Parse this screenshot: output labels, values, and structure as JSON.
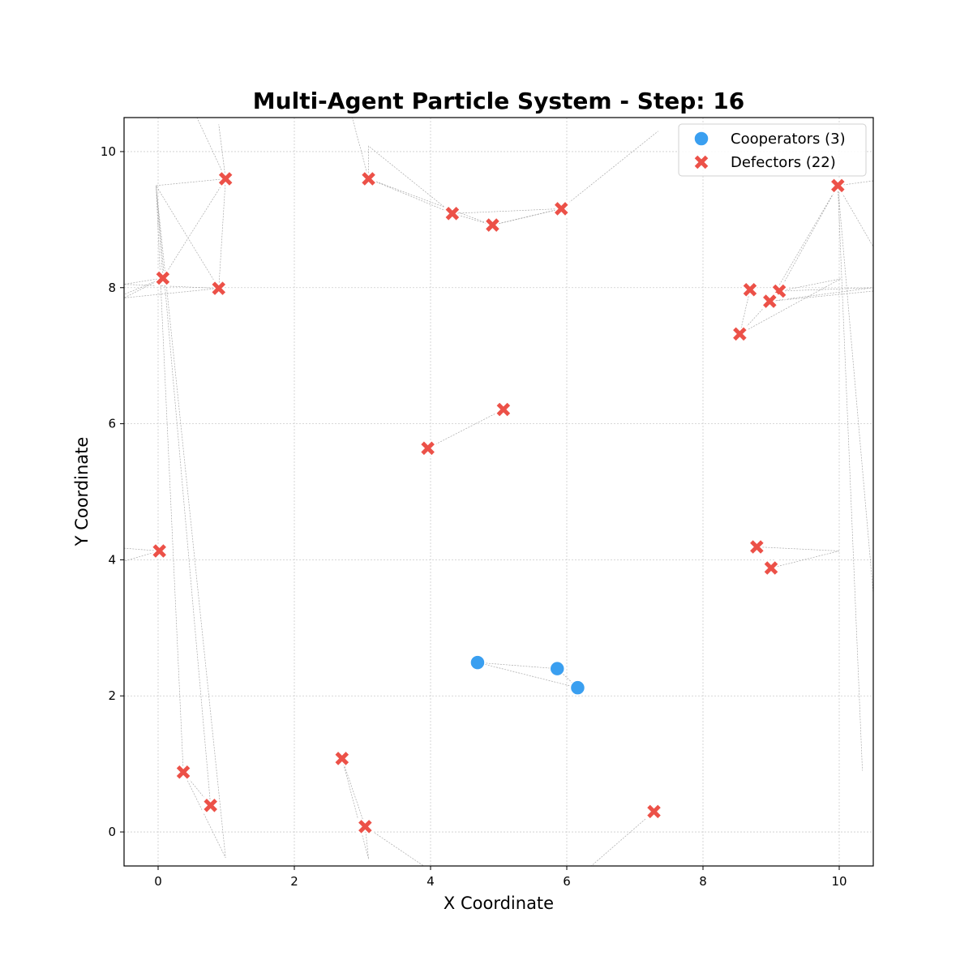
{
  "chart_data": {
    "type": "scatter",
    "title": "Multi-Agent Particle System - Step: 16",
    "xlabel": "X Coordinate",
    "ylabel": "Y Coordinate",
    "xlim": [
      -0.5,
      10.5
    ],
    "ylim": [
      -0.5,
      10.5
    ],
    "xticks": [
      0,
      2,
      4,
      6,
      8,
      10
    ],
    "yticks": [
      0,
      2,
      4,
      6,
      8,
      10
    ],
    "grid": true,
    "legend_position": "top-right",
    "series": [
      {
        "name": "Cooperators (3)",
        "marker": "circle",
        "color": "#3a9ff0",
        "points": [
          [
            4.69,
            2.49
          ],
          [
            5.86,
            2.4
          ],
          [
            6.16,
            2.12
          ]
        ]
      },
      {
        "name": "Defectors (22)",
        "marker": "x",
        "color": "#ec5148",
        "points": [
          [
            0.99,
            9.6
          ],
          [
            0.07,
            8.14
          ],
          [
            0.89,
            7.99
          ],
          [
            3.09,
            9.6
          ],
          [
            4.32,
            9.09
          ],
          [
            4.91,
            8.92
          ],
          [
            5.92,
            9.16
          ],
          [
            9.98,
            9.5
          ],
          [
            8.69,
            7.97
          ],
          [
            9.12,
            7.95
          ],
          [
            8.98,
            7.8
          ],
          [
            8.54,
            7.32
          ],
          [
            5.07,
            6.21
          ],
          [
            3.96,
            5.64
          ],
          [
            0.02,
            4.13
          ],
          [
            8.79,
            4.19
          ],
          [
            9.0,
            3.88
          ],
          [
            0.37,
            0.88
          ],
          [
            0.77,
            0.39
          ],
          [
            2.7,
            1.08
          ],
          [
            3.04,
            0.08
          ],
          [
            7.28,
            0.3
          ]
        ]
      }
    ],
    "trails": [
      [
        [
          0.99,
          9.6
        ],
        [
          0.89,
          10.4
        ],
        [
          0.99,
          9.6
        ],
        [
          0.57,
          10.5
        ]
      ],
      [
        [
          0.99,
          9.6
        ],
        [
          -0.03,
          9.5
        ],
        [
          0.89,
          7.99
        ],
        [
          0.99,
          9.6
        ],
        [
          0.07,
          8.14
        ],
        [
          -0.5,
          7.9
        ]
      ],
      [
        [
          0.07,
          8.14
        ],
        [
          -0.5,
          8.05
        ],
        [
          0.89,
          7.99
        ],
        [
          -0.5,
          7.85
        ],
        [
          0.07,
          8.14
        ],
        [
          -0.03,
          9.5
        ],
        [
          0.37,
          0.88
        ],
        [
          0.77,
          0.39
        ],
        [
          -0.03,
          9.5
        ],
        [
          0.99,
          -0.38
        ],
        [
          0.37,
          0.88
        ]
      ],
      [
        [
          0.02,
          4.13
        ],
        [
          -0.5,
          4.17
        ]
      ],
      [
        [
          0.02,
          4.13
        ],
        [
          -0.5,
          3.98
        ]
      ],
      [
        [
          3.09,
          9.6
        ],
        [
          2.85,
          10.5
        ]
      ],
      [
        [
          3.09,
          9.6
        ],
        [
          4.32,
          9.09
        ],
        [
          4.91,
          8.92
        ],
        [
          5.92,
          9.16
        ],
        [
          7.34,
          10.3
        ]
      ],
      [
        [
          3.09,
          9.6
        ],
        [
          3.09,
          10.08
        ],
        [
          4.32,
          9.09
        ],
        [
          5.92,
          9.16
        ],
        [
          4.91,
          8.92
        ],
        [
          3.09,
          9.6
        ]
      ],
      [
        [
          9.98,
          9.5
        ],
        [
          10.5,
          9.57
        ]
      ],
      [
        [
          9.98,
          9.5
        ],
        [
          10.5,
          8.6
        ]
      ],
      [
        [
          9.98,
          9.5
        ],
        [
          8.98,
          7.8
        ],
        [
          8.54,
          7.32
        ],
        [
          8.69,
          7.97
        ]
      ],
      [
        [
          9.98,
          9.5
        ],
        [
          9.12,
          7.95
        ],
        [
          10.02,
          8.13
        ],
        [
          8.54,
          7.32
        ]
      ],
      [
        [
          9.98,
          9.5
        ],
        [
          10.34,
          0.9
        ]
      ],
      [
        [
          9.98,
          9.5
        ],
        [
          10.5,
          3.5
        ]
      ],
      [
        [
          9.12,
          7.95
        ],
        [
          10.5,
          8.0
        ],
        [
          8.98,
          7.8
        ],
        [
          10.5,
          7.95
        ]
      ],
      [
        [
          8.79,
          4.19
        ],
        [
          10.0,
          4.13
        ],
        [
          9.0,
          3.88
        ]
      ],
      [
        [
          3.96,
          5.64
        ],
        [
          5.07,
          6.21
        ]
      ],
      [
        [
          2.7,
          1.08
        ],
        [
          3.04,
          0.08
        ],
        [
          3.09,
          -0.4
        ],
        [
          2.7,
          1.08
        ]
      ],
      [
        [
          3.04,
          0.08
        ],
        [
          3.9,
          -0.5
        ]
      ],
      [
        [
          7.28,
          0.3
        ],
        [
          6.36,
          -0.5
        ]
      ],
      [
        [
          4.69,
          2.49
        ],
        [
          5.86,
          2.4
        ],
        [
          6.16,
          2.12
        ],
        [
          4.69,
          2.49
        ]
      ]
    ]
  }
}
